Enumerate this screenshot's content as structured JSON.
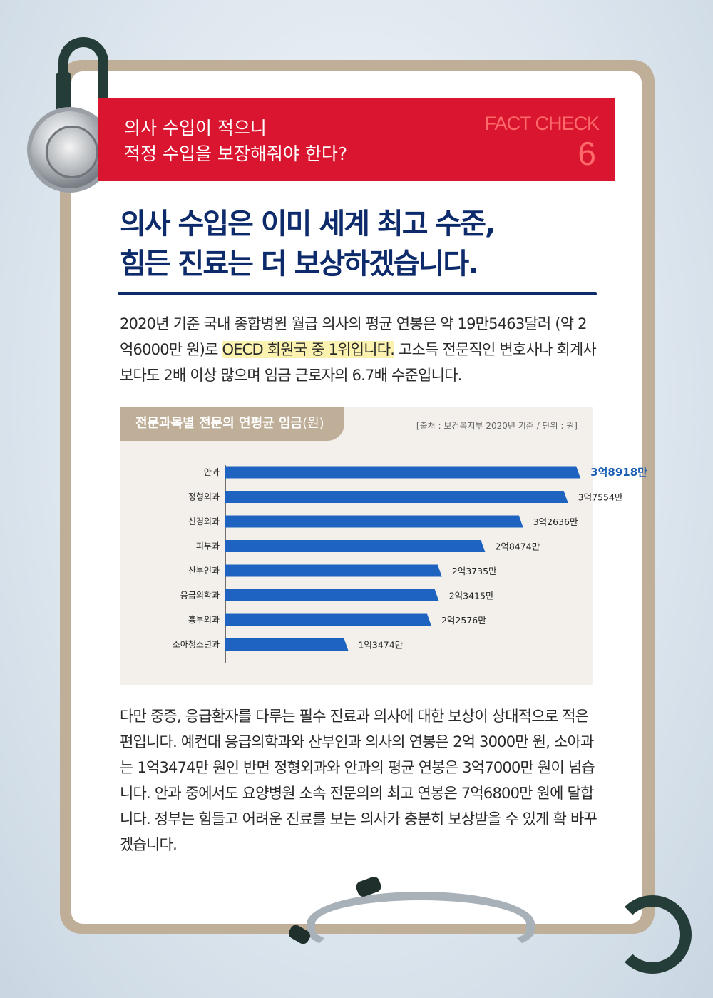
{
  "banner": {
    "question_line1": "의사 수입이 적으니",
    "question_line2": "적정 수입을 보장해줘야 한다?",
    "fact_label": "FACT CHECK",
    "fact_number": "6"
  },
  "headline": {
    "line1": "의사 수입은 이미 세계 최고 수준,",
    "line2": "힘든 진료는 더 보상하겠습니다."
  },
  "para1": {
    "part1": "2020년 기준 국내 종합병원 월급 의사의 평균 연봉은 약 19만5463달러 (약 2억6000만 원)로 ",
    "highlight": "OECD 회원국 중 1위입니다.",
    "part2": " 고소득 전문직인 변호사나 회계사 보다도 2배 이상 많으며 임금 근로자의 6.7배 수준입니다."
  },
  "chart_header": {
    "title": "전문과목별 전문의 연평균 임금",
    "unit": "(원)",
    "source": "[출처 : 보건복지부 2020년 기준 / 단위 : 원]"
  },
  "chart_data": {
    "type": "bar",
    "orientation": "horizontal",
    "categories": [
      "안과",
      "정형외과",
      "신경외과",
      "피부과",
      "산부인과",
      "응급의학과",
      "흉부외과",
      "소아청소년과"
    ],
    "values": [
      389180000,
      375540000,
      326360000,
      284740000,
      237350000,
      234150000,
      225760000,
      134740000
    ],
    "value_labels": [
      "3억8918만",
      "3억7554만",
      "3억2636만",
      "2억8474만",
      "2억3735만",
      "2억3415만",
      "2억2576만",
      "1억3474만"
    ],
    "bar_color": "#1e63bf",
    "highlight_label_color": "#1a5fb4"
  },
  "para2": {
    "text": "다만 중증, 응급환자를 다루는 필수 진료과 의사에 대한 보상이 상대적으로 적은 편입니다. 예컨대 응급의학과와 산부인과 의사의 연봉은 2억 3000만 원, 소아과는 1억3474만 원인 반면 정형외과와 안과의 평균 연봉은 3억7000만 원이 넘습니다. 안과 중에서도 요양병원 소속 전문의의 최고 연봉은 7억6800만 원에 달합니다. 정부는 힘들고 어려운 진료를 보는 의사가 충분히 보상받을 수 있게 확 바꾸겠습니다."
  }
}
